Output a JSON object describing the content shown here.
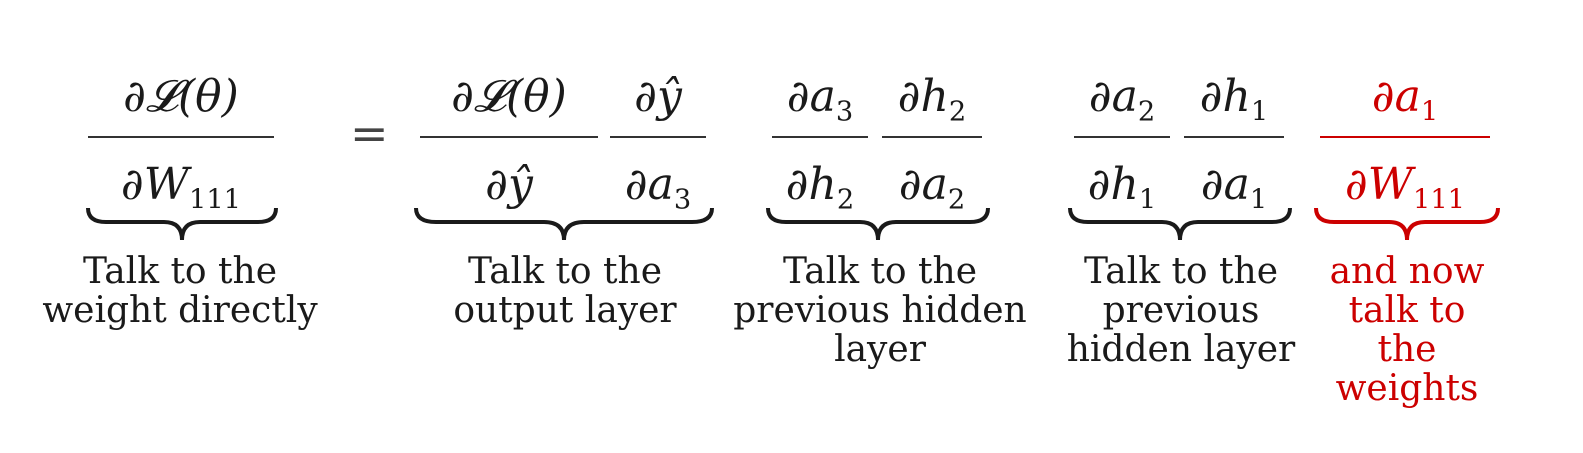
{
  "equation": {
    "lhs": {
      "numerator": "∂𝓛(θ)",
      "denominator_main": "∂W",
      "denominator_sub": "111",
      "caption": "Talk to the weight directly"
    },
    "equals": "=",
    "terms": [
      {
        "fractions": [
          {
            "num_main": "∂𝓛(θ)",
            "num_sub": "",
            "den_main": "∂ŷ",
            "den_sub": ""
          },
          {
            "num_main": "∂ŷ",
            "num_sub": "",
            "den_main": "∂a",
            "den_sub": "3"
          }
        ],
        "caption": "Talk to the output layer"
      },
      {
        "fractions": [
          {
            "num_main": "∂a",
            "num_sub": "3",
            "den_main": "∂h",
            "den_sub": "2"
          },
          {
            "num_main": "∂h",
            "num_sub": "2",
            "den_main": "∂a",
            "den_sub": "2"
          }
        ],
        "caption": "Talk to the previous hidden layer"
      },
      {
        "fractions": [
          {
            "num_main": "∂a",
            "num_sub": "2",
            "den_main": "∂h",
            "den_sub": "1"
          },
          {
            "num_main": "∂h",
            "num_sub": "1",
            "den_main": "∂a",
            "den_sub": "1"
          }
        ],
        "caption": "Talk to the previous hidden layer"
      },
      {
        "fractions": [
          {
            "num_main": "∂a",
            "num_sub": "1",
            "den_main": "∂W",
            "den_sub": "111"
          }
        ],
        "caption": "and now talk to the weights"
      }
    ],
    "colors": {
      "text": "#1a1a1a",
      "highlight": "#cc0000",
      "bar": "#333333"
    }
  }
}
